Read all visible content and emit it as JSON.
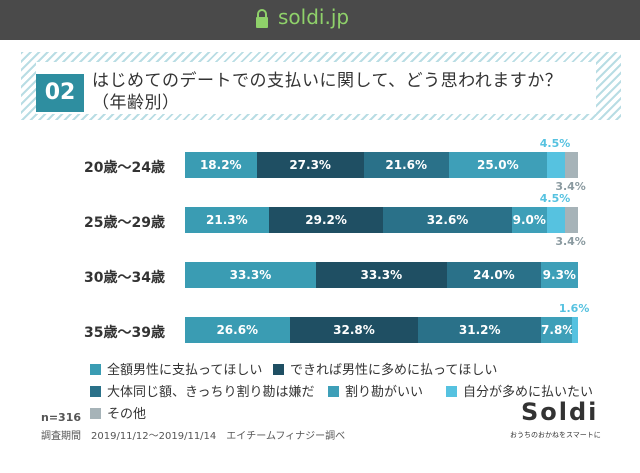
{
  "browser": {
    "url": "soldi.jp"
  },
  "question": {
    "number": "02",
    "title_line1": "はじめてのデートでの支払いに関して、どう思われますか？",
    "title_line2": "（年齢別）"
  },
  "chart_data": {
    "type": "bar",
    "orientation": "horizontal",
    "stacked": true,
    "percent_stacked": true,
    "categories": [
      "20歳〜24歳",
      "25歳〜29歳",
      "30歳〜34歳",
      "35歳〜39歳"
    ],
    "series": [
      {
        "name": "全額男性に支払ってほしい",
        "color": "#3a9cb3",
        "values": [
          18.2,
          21.3,
          33.3,
          26.6
        ]
      },
      {
        "name": "できれば男性に多めに払ってほしい",
        "color": "#1f4f63",
        "values": [
          27.3,
          29.2,
          33.3,
          32.8
        ]
      },
      {
        "name": "大体同じ額、きっちり割り勘は嫌だ",
        "color": "#2a7189",
        "values": [
          21.6,
          32.6,
          24.0,
          31.2
        ]
      },
      {
        "name": "割り勘がいい",
        "color": "#3e9fb8",
        "values": [
          25.0,
          9.0,
          9.3,
          7.8
        ]
      },
      {
        "name": "自分が多めに払いたい",
        "color": "#56c2e0",
        "values": [
          4.5,
          4.5,
          0,
          1.6
        ]
      },
      {
        "name": "その他",
        "color": "#a6b3b8",
        "values": [
          3.4,
          3.4,
          0,
          0
        ]
      }
    ],
    "labels": [
      [
        "18.2%",
        "27.3%",
        "21.6%",
        "25.0%",
        "4.5%",
        "3.4%"
      ],
      [
        "21.3%",
        "29.2%",
        "32.6%",
        "9.0%",
        "4.5%",
        "3.4%"
      ],
      [
        "33.3%",
        "33.3%",
        "24.0%",
        "9.3%",
        "",
        ""
      ],
      [
        "26.6%",
        "32.8%",
        "31.2%",
        "7.8%",
        "1.6%",
        ""
      ]
    ],
    "legend_position": "bottom"
  },
  "footer": {
    "n": "n=316",
    "period": "調査期間　2019/11/12〜2019/11/14　エイチームフィナジー調べ",
    "logo": "Soldi",
    "logo_sub": "おうちのおかねをスマートに"
  }
}
